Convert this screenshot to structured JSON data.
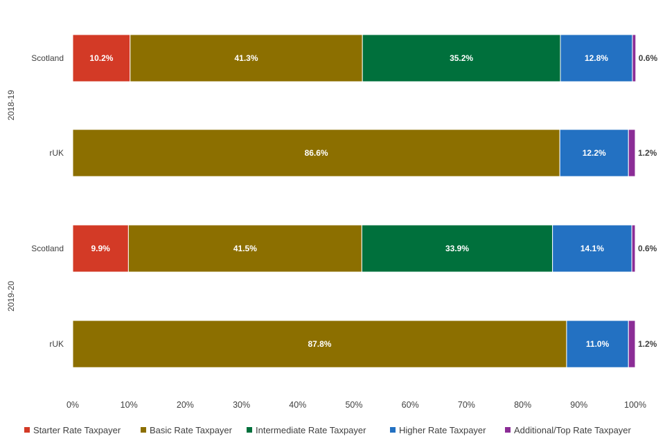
{
  "chart_data": {
    "type": "bar",
    "orientation": "horizontal",
    "stacked": true,
    "xlim": [
      0,
      100
    ],
    "x_ticks": [
      "0%",
      "10%",
      "20%",
      "30%",
      "40%",
      "50%",
      "60%",
      "70%",
      "80%",
      "90%",
      "100%"
    ],
    "groups": [
      {
        "label": "2018-19",
        "bars": [
          "Scotland",
          "rUK"
        ]
      },
      {
        "label": "2019-20",
        "bars": [
          "Scotland",
          "rUK"
        ]
      }
    ],
    "categories": [
      "Scotland",
      "rUK",
      "Scotland",
      "rUK"
    ],
    "series": [
      {
        "name": "Starter Rate Taxpayer",
        "color": "#D33A26",
        "values": [
          10.2,
          0,
          9.9,
          0
        ],
        "labels": [
          "10.2%",
          "",
          "9.9%",
          ""
        ]
      },
      {
        "name": "Basic Rate Taxpayer",
        "color": "#8C6F00",
        "values": [
          41.3,
          86.6,
          41.5,
          87.8
        ],
        "labels": [
          "41.3%",
          "86.6%",
          "41.5%",
          "87.8%"
        ]
      },
      {
        "name": "Intermediate Rate Taxpayer",
        "color": "#00703C",
        "values": [
          35.2,
          0,
          33.9,
          0
        ],
        "labels": [
          "35.2%",
          "",
          "33.9%",
          ""
        ]
      },
      {
        "name": "Higher Rate Taxpayer",
        "color": "#2371C2",
        "values": [
          12.8,
          12.2,
          14.1,
          11.0
        ],
        "labels": [
          "12.8%",
          "12.2%",
          "14.1%",
          "11.0%"
        ]
      },
      {
        "name": "Additional/Top Rate Taxpayer",
        "color": "#8B2D96",
        "values": [
          0.6,
          1.2,
          0.6,
          1.2
        ],
        "labels": [
          "0.6%",
          "1.2%",
          "0.6%",
          "1.2%"
        ]
      }
    ],
    "legend": "bottom"
  }
}
